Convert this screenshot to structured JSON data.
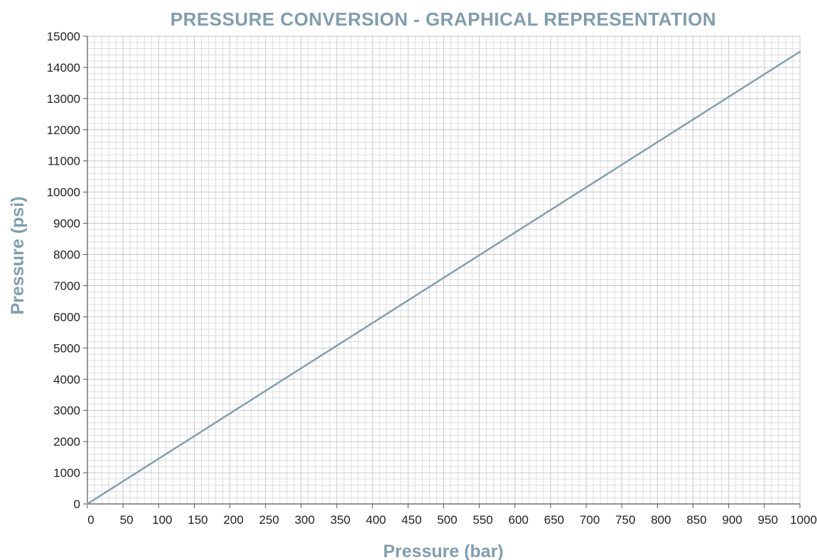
{
  "chart_data": {
    "type": "line",
    "title": "PRESSURE CONVERSION - GRAPHICAL REPRESENTATION",
    "xlabel": "Pressure (bar)",
    "ylabel": "Pressure (psi)",
    "xlim": [
      0,
      1000
    ],
    "ylim": [
      0,
      15000
    ],
    "x_ticks": [
      0,
      50,
      100,
      150,
      200,
      250,
      300,
      350,
      400,
      450,
      500,
      550,
      600,
      650,
      700,
      750,
      800,
      850,
      900,
      950,
      1000
    ],
    "y_ticks": [
      0,
      1000,
      2000,
      3000,
      4000,
      5000,
      6000,
      7000,
      8000,
      9000,
      10000,
      11000,
      12000,
      13000,
      14000,
      15000
    ],
    "x_tick_labels": [
      "0",
      "50",
      "100",
      "150",
      "200",
      "250",
      "300",
      "350",
      "400",
      "450",
      "500",
      "550",
      "600",
      "650",
      "700",
      "750",
      "800",
      "850",
      "900",
      "950",
      "1000"
    ],
    "y_tick_labels": [
      "0",
      "1000",
      "2000",
      "3000",
      "4000",
      "5000",
      "6000",
      "7000",
      "8000",
      "9000",
      "10000",
      "11000",
      "12000",
      "13000",
      "14000",
      "15000"
    ],
    "grid": true,
    "series": [
      {
        "x": [
          0,
          1000
        ],
        "y": [
          0,
          14504
        ]
      }
    ],
    "colors": {
      "line": "#7f9db0",
      "title": "#7f9db0",
      "axis_label": "#7f9db0",
      "grid_minor": "#dcdcdc",
      "grid_major": "#c6c6c6",
      "axis": "#555555"
    }
  }
}
